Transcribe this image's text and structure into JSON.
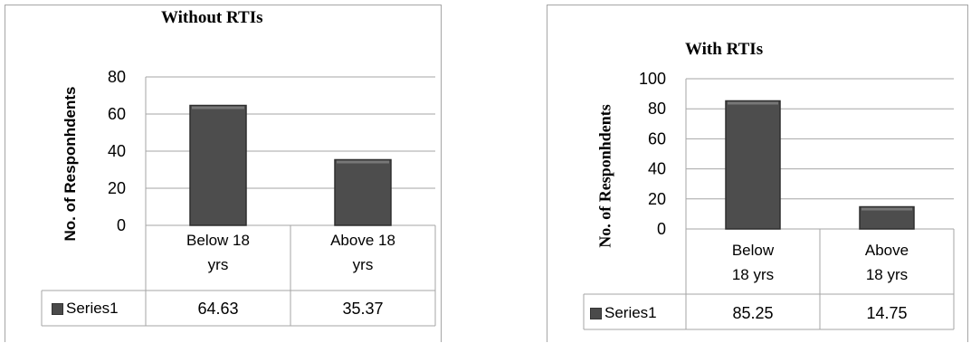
{
  "chart_data": [
    {
      "type": "bar",
      "title": "Without RTIs",
      "ylabel": "No. of Responhdents",
      "categories": [
        "Below 18 yrs",
        "Above 18 yrs"
      ],
      "category_lines": [
        [
          "Below 18",
          "yrs"
        ],
        [
          "Above 18",
          "yrs"
        ]
      ],
      "series": [
        {
          "name": "Series1",
          "values": [
            64.63,
            35.37
          ]
        }
      ],
      "table_values": [
        "64.63",
        "35.37"
      ],
      "ylim": [
        0,
        80
      ],
      "yticks": [
        0,
        20,
        40,
        60,
        80
      ],
      "grid": true,
      "data_table": true,
      "bar_color": "#4d4d4d"
    },
    {
      "type": "bar",
      "title": "With RTIs",
      "ylabel": "No. of Responhdents",
      "categories": [
        "Below 18 yrs",
        "Above 18 yrs"
      ],
      "category_lines": [
        [
          "Below",
          "18 yrs"
        ],
        [
          "Above",
          "18 yrs"
        ]
      ],
      "series": [
        {
          "name": "Series1",
          "values": [
            85.25,
            14.75
          ]
        }
      ],
      "table_values": [
        "85.25",
        "14.75"
      ],
      "ylim": [
        0,
        100
      ],
      "yticks": [
        0,
        20,
        40,
        60,
        80,
        100
      ],
      "grid": true,
      "data_table": true,
      "bar_color": "#4d4d4d"
    }
  ]
}
